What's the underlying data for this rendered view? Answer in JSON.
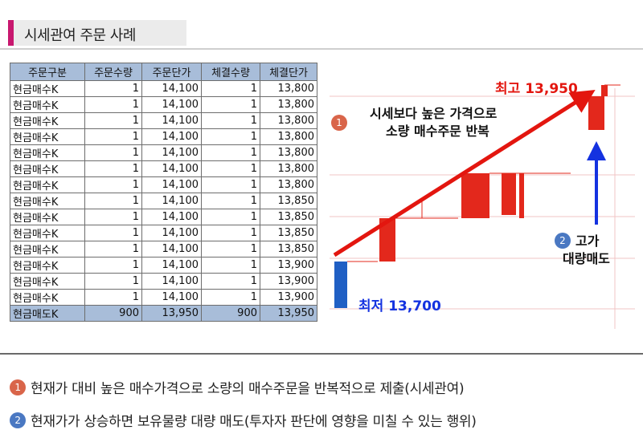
{
  "title": "시세관여 주문 사례",
  "table": {
    "headers": [
      "주문구분",
      "주문수량",
      "주문단가",
      "체결수량",
      "체결단가"
    ],
    "rows": [
      [
        "현금매수K",
        "1",
        "14,100",
        "1",
        "13,800"
      ],
      [
        "현금매수K",
        "1",
        "14,100",
        "1",
        "13,800"
      ],
      [
        "현금매수K",
        "1",
        "14,100",
        "1",
        "13,800"
      ],
      [
        "현금매수K",
        "1",
        "14,100",
        "1",
        "13,800"
      ],
      [
        "현금매수K",
        "1",
        "14,100",
        "1",
        "13,800"
      ],
      [
        "현금매수K",
        "1",
        "14,100",
        "1",
        "13,800"
      ],
      [
        "현금매수K",
        "1",
        "14,100",
        "1",
        "13,800"
      ],
      [
        "현금매수K",
        "1",
        "14,100",
        "1",
        "13,850"
      ],
      [
        "현금매수K",
        "1",
        "14,100",
        "1",
        "13,850"
      ],
      [
        "현금매수K",
        "1",
        "14,100",
        "1",
        "13,850"
      ],
      [
        "현금매수K",
        "1",
        "14,100",
        "1",
        "13,850"
      ],
      [
        "현금매수K",
        "1",
        "14,100",
        "1",
        "13,900"
      ],
      [
        "현금매수K",
        "1",
        "14,100",
        "1",
        "13,900"
      ],
      [
        "현금매수K",
        "1",
        "14,100",
        "1",
        "13,900"
      ],
      [
        "현금매도K",
        "900",
        "13,950",
        "900",
        "13,950"
      ]
    ]
  },
  "chart": {
    "annotation1": {
      "badge": "1",
      "line1": "시세보다 높은 가격으로",
      "line2": "소량 매수주문 반복"
    },
    "high_label": "최고 13,950",
    "low_label": "최저 13,700",
    "annotation2": {
      "badge": "2",
      "line1": "고가",
      "line2": "대량매도"
    },
    "colors": {
      "up": "#e3281c",
      "down": "#1f5fc4",
      "arrow_red": "#e3160f",
      "arrow_blue": "#1432e0"
    }
  },
  "notes": [
    {
      "badge": "1",
      "text": "현재가 대비 높은 매수가격으로 소량의 매수주문을 반복적으로 제출(시세관여)"
    },
    {
      "badge": "2",
      "text": "현재가가 상승하면 보유물량 대량 매도(투자자 판단에 영향을 미칠 수 있는 행위)"
    }
  ]
}
